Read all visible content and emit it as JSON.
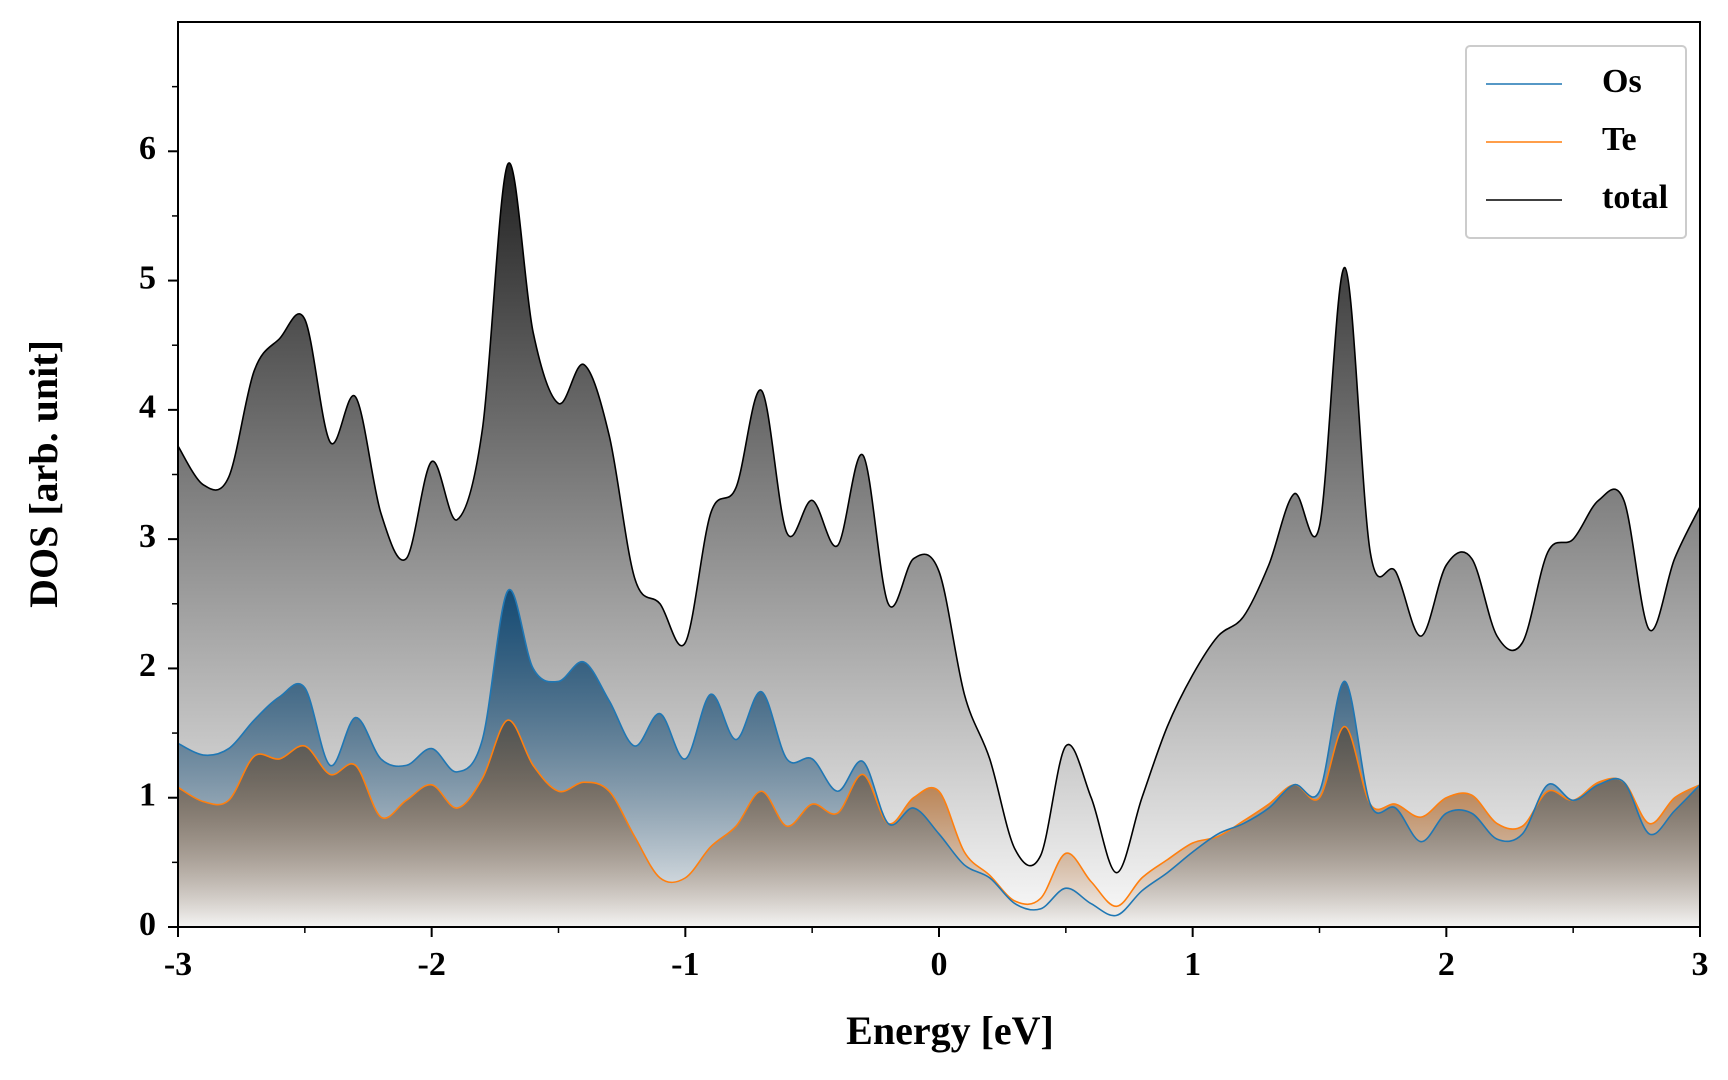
{
  "chart_data": {
    "type": "line",
    "x": [
      -3.0,
      -2.9,
      -2.8,
      -2.7,
      -2.6,
      -2.5,
      -2.4,
      -2.3,
      -2.2,
      -2.1,
      -2.0,
      -1.9,
      -1.8,
      -1.7,
      -1.6,
      -1.5,
      -1.4,
      -1.3,
      -1.2,
      -1.1,
      -1.0,
      -0.9,
      -0.8,
      -0.7,
      -0.6,
      -0.5,
      -0.4,
      -0.3,
      -0.2,
      -0.1,
      0.0,
      0.1,
      0.2,
      0.3,
      0.4,
      0.5,
      0.6,
      0.7,
      0.8,
      0.9,
      1.0,
      1.1,
      1.2,
      1.3,
      1.4,
      1.5,
      1.6,
      1.7,
      1.8,
      1.9,
      2.0,
      2.1,
      2.2,
      2.3,
      2.4,
      2.5,
      2.6,
      2.7,
      2.8,
      2.9,
      3.0
    ],
    "series": [
      {
        "name": "Os",
        "color": "#1f77b4",
        "fill": "#164c75",
        "values": [
          1.42,
          1.33,
          1.38,
          1.6,
          1.78,
          1.85,
          1.25,
          1.62,
          1.3,
          1.25,
          1.38,
          1.2,
          1.45,
          2.6,
          2.0,
          1.9,
          2.05,
          1.75,
          1.4,
          1.65,
          1.3,
          1.8,
          1.45,
          1.82,
          1.3,
          1.3,
          1.05,
          1.28,
          0.8,
          0.92,
          0.72,
          0.48,
          0.38,
          0.18,
          0.14,
          0.3,
          0.18,
          0.09,
          0.28,
          0.42,
          0.58,
          0.72,
          0.8,
          0.92,
          1.1,
          1.05,
          1.9,
          0.95,
          0.92,
          0.66,
          0.88,
          0.88,
          0.68,
          0.72,
          1.1,
          0.98,
          1.1,
          1.12,
          0.72,
          0.9,
          1.1
        ]
      },
      {
        "name": "Te",
        "color": "#ff7f0e",
        "fill": "#b0621f",
        "values": [
          1.08,
          0.97,
          0.98,
          1.32,
          1.3,
          1.4,
          1.18,
          1.25,
          0.85,
          0.98,
          1.1,
          0.92,
          1.15,
          1.6,
          1.25,
          1.05,
          1.12,
          1.05,
          0.7,
          0.38,
          0.38,
          0.62,
          0.78,
          1.05,
          0.78,
          0.95,
          0.88,
          1.18,
          0.8,
          1.0,
          1.05,
          0.58,
          0.4,
          0.2,
          0.22,
          0.57,
          0.35,
          0.16,
          0.38,
          0.52,
          0.65,
          0.7,
          0.82,
          0.95,
          1.1,
          1.0,
          1.55,
          0.95,
          0.95,
          0.85,
          1.0,
          1.02,
          0.8,
          0.78,
          1.05,
          0.98,
          1.12,
          1.12,
          0.8,
          1.0,
          1.1
        ]
      },
      {
        "name": "total",
        "color": "#000000",
        "fill": "#222222",
        "values": [
          3.72,
          3.42,
          3.48,
          4.3,
          4.55,
          4.7,
          3.75,
          4.1,
          3.2,
          2.85,
          3.6,
          3.15,
          3.85,
          5.9,
          4.6,
          4.05,
          4.35,
          3.8,
          2.7,
          2.5,
          2.2,
          3.2,
          3.4,
          4.15,
          3.05,
          3.3,
          2.95,
          3.65,
          2.5,
          2.85,
          2.75,
          1.8,
          1.3,
          0.6,
          0.55,
          1.4,
          1.0,
          0.42,
          1.0,
          1.55,
          1.95,
          2.25,
          2.4,
          2.8,
          3.35,
          3.1,
          5.1,
          2.9,
          2.75,
          2.25,
          2.8,
          2.85,
          2.25,
          2.2,
          2.9,
          3.0,
          3.3,
          3.3,
          2.3,
          2.85,
          3.25
        ]
      }
    ],
    "xlabel": "Energy [eV]",
    "ylabel": "DOS [arb. unit]",
    "xlim": [
      -3,
      3
    ],
    "xticks": [
      -3,
      -2,
      -1,
      0,
      1,
      2,
      3
    ],
    "ylim": [
      0,
      7
    ],
    "yticks": [
      0,
      1,
      2,
      3,
      4,
      5,
      6
    ],
    "legend": "upper right"
  }
}
